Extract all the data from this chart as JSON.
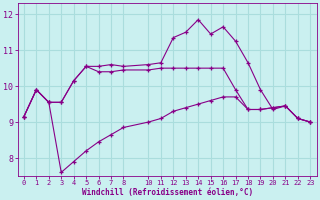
{
  "xlabel": "Windchill (Refroidissement éolien,°C)",
  "background_color": "#caf0f0",
  "grid_color": "#aadddd",
  "line_color": "#880088",
  "hours": [
    0,
    1,
    2,
    3,
    4,
    5,
    6,
    7,
    8,
    10,
    11,
    12,
    13,
    14,
    15,
    16,
    17,
    18,
    19,
    20,
    21,
    22,
    23
  ],
  "line_top": [
    9.15,
    9.9,
    9.55,
    9.55,
    10.15,
    10.55,
    10.55,
    10.6,
    10.55,
    10.6,
    10.65,
    11.35,
    11.5,
    11.85,
    11.45,
    11.65,
    11.25,
    10.65,
    9.9,
    9.35,
    9.45,
    9.1,
    9.0
  ],
  "line_mid": [
    9.15,
    9.9,
    9.55,
    9.55,
    10.15,
    10.55,
    10.4,
    10.4,
    10.45,
    10.45,
    10.5,
    10.5,
    10.5,
    10.5,
    10.5,
    10.5,
    9.9,
    9.35,
    9.35,
    9.4,
    9.45,
    9.1,
    9.0
  ],
  "line_bot": [
    9.15,
    9.9,
    9.55,
    7.6,
    7.9,
    8.2,
    8.45,
    8.65,
    8.85,
    9.0,
    9.1,
    9.3,
    9.4,
    9.5,
    9.6,
    9.7,
    9.7,
    9.35,
    9.35,
    9.4,
    9.45,
    9.1,
    9.0
  ],
  "xlim": [
    -0.5,
    23.5
  ],
  "ylim": [
    7.5,
    12.3
  ],
  "yticks": [
    8,
    9,
    10,
    11,
    12
  ],
  "xticks": [
    0,
    1,
    2,
    3,
    4,
    5,
    6,
    7,
    8,
    10,
    11,
    12,
    13,
    14,
    15,
    16,
    17,
    18,
    19,
    20,
    21,
    22,
    23
  ]
}
